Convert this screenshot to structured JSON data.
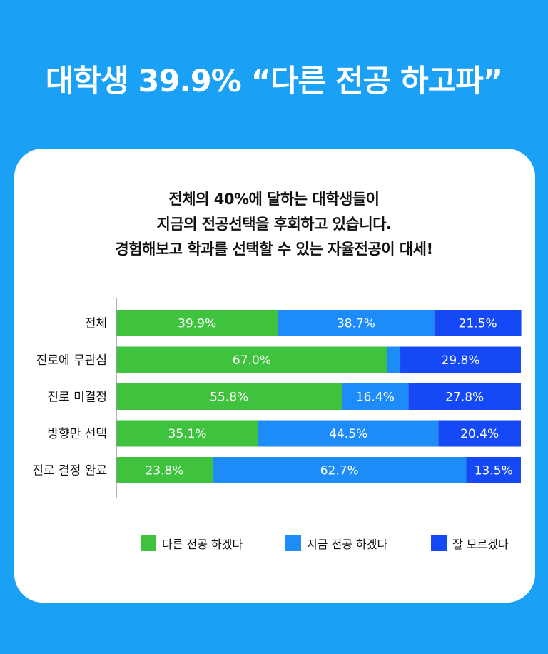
{
  "headline": "대학생 39.9% “다른 전공 하고파”",
  "subtitle_lines": [
    "전체의 40%에 달하는 대학생들이",
    "지금의 전공선택을 후회하고 있습니다.",
    "경험해보고 학과를 선택할 수 있는 자율전공이 대세!"
  ],
  "chart_data": {
    "type": "bar",
    "orientation": "horizontal",
    "stacked": true,
    "categories": [
      "전체",
      "진로에 무관심",
      "진로 미결정",
      "방향만 선택",
      "진로 결정 완료"
    ],
    "series": [
      {
        "name": "다른 전공 하겠다",
        "color": "#3fc33f",
        "values": [
          39.9,
          67.0,
          55.8,
          35.1,
          23.8
        ],
        "labels": [
          "39.9%",
          "67.0%",
          "55.8%",
          "35.1%",
          "23.8%"
        ]
      },
      {
        "name": "지금 전공 하겠다",
        "color": "#1d8cf8",
        "values": [
          38.7,
          3.2,
          16.4,
          44.5,
          62.7
        ],
        "labels": [
          "38.7%",
          "",
          "16.4%",
          "44.5%",
          "62.7%"
        ]
      },
      {
        "name": "잘 모르겠다",
        "color": "#1549f5",
        "values": [
          21.5,
          29.8,
          27.8,
          20.4,
          13.5
        ],
        "labels": [
          "21.5%",
          "29.8%",
          "27.8%",
          "20.4%",
          "13.5%"
        ]
      }
    ],
    "xlim": [
      0,
      100
    ],
    "legend_position": "bottom-right",
    "grid": false
  }
}
